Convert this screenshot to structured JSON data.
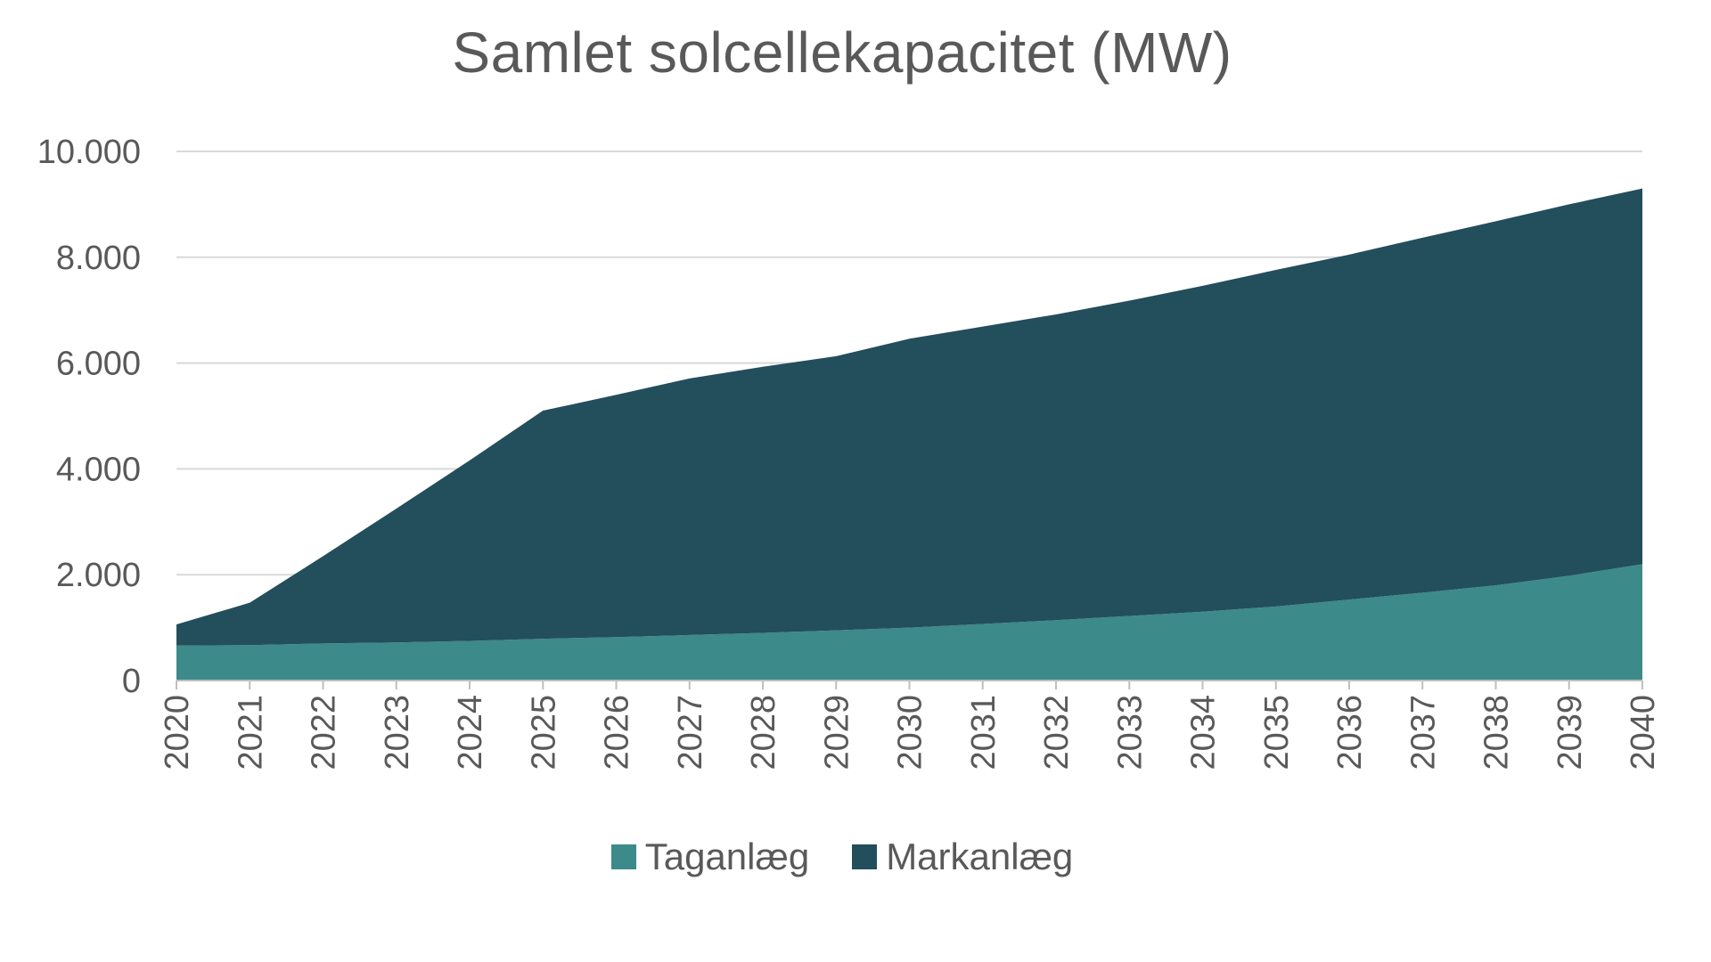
{
  "chart_data": {
    "type": "area",
    "stacked": true,
    "title": "Samlet solcellekapacitet (MW)",
    "xlabel": "",
    "ylabel": "",
    "x": [
      "2020",
      "2021",
      "2022",
      "2023",
      "2024",
      "2025",
      "2026",
      "2027",
      "2028",
      "2029",
      "2030",
      "2031",
      "2032",
      "2033",
      "2034",
      "2035",
      "2036",
      "2037",
      "2038",
      "2039",
      "2040"
    ],
    "ylim": [
      0,
      10000
    ],
    "yticks": [
      0,
      2000,
      4000,
      6000,
      8000,
      10000
    ],
    "ytick_labels": [
      "0",
      "2.000",
      "4.000",
      "6.000",
      "8.000",
      "10.000"
    ],
    "grid": true,
    "legend_position": "bottom",
    "series": [
      {
        "name": "Taganlæg",
        "color": "#3c8a89",
        "values": [
          660,
          670,
          700,
          720,
          750,
          790,
          820,
          860,
          900,
          950,
          1000,
          1070,
          1140,
          1220,
          1300,
          1400,
          1530,
          1660,
          1800,
          1980,
          2200
        ]
      },
      {
        "name": "Markanlæg",
        "color": "#234e5c",
        "values": [
          400,
          800,
          1650,
          2530,
          3410,
          4310,
          4580,
          4850,
          5030,
          5180,
          5460,
          5620,
          5780,
          5960,
          6160,
          6360,
          6520,
          6710,
          6880,
          7020,
          7100
        ]
      }
    ],
    "colors": {
      "grid": "#d9d9d9",
      "axis": "#bfbfbf",
      "text": "#595959"
    }
  }
}
